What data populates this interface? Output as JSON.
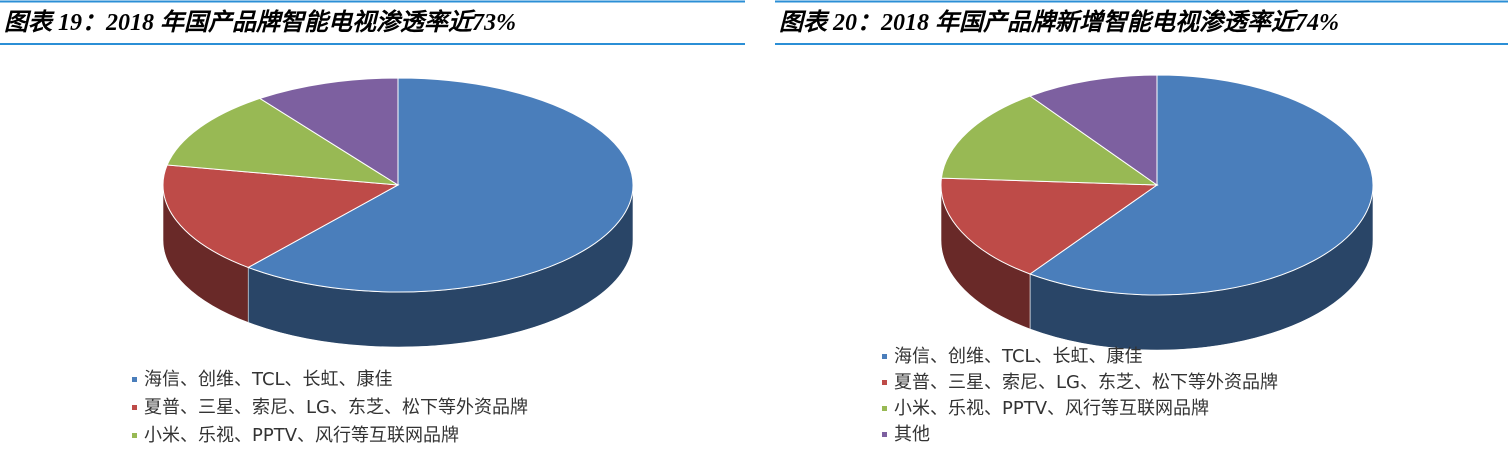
{
  "chart_data": [
    {
      "type": "pie",
      "title": "图表 19：2018 年国产品牌智能电视渗透率近73%",
      "categories": [
        "海信、创维、TCL、长虹、康佳",
        "夏普、三星、索尼、LG、东芝、松下等外资品牌",
        "小米、乐视、PPTV、风行等互联网品牌",
        null
      ],
      "values": [
        61,
        17,
        12,
        10
      ],
      "colors": [
        "#4a7ebb",
        "#be4b48",
        "#98b954",
        "#7d60a0"
      ]
    },
    {
      "type": "pie",
      "title": "图表 20：2018 年国产品牌新增智能电视渗透率近74%",
      "categories": [
        "海信、创维、TCL、长虹、康佳",
        "夏普、三星、索尼、LG、东芝、松下等外资品牌",
        "小米、乐视、PPTV、风行等互联网品牌",
        "其他"
      ],
      "values": [
        60,
        16,
        14,
        10
      ],
      "colors": [
        "#4a7ebb",
        "#be4b48",
        "#98b954",
        "#7d60a0"
      ]
    }
  ]
}
